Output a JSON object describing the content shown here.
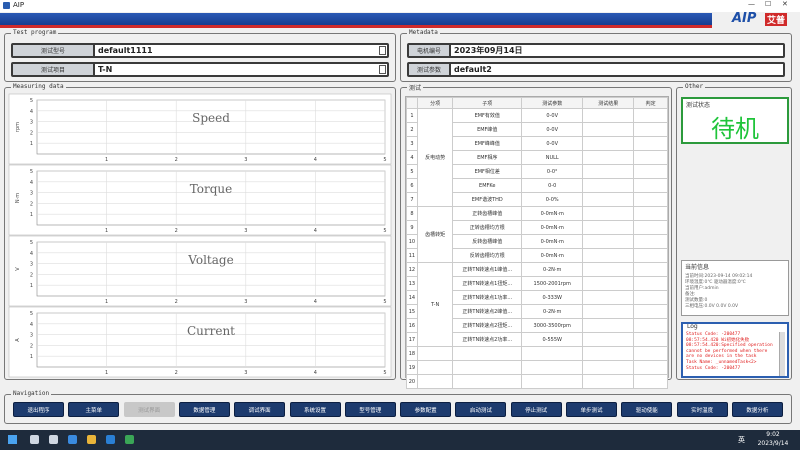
{
  "window": {
    "title": "AIP",
    "logo": "AIP",
    "logo_cn": "艾普"
  },
  "test_program": {
    "title": "Test program",
    "fields": [
      {
        "label": "测试型号",
        "value": "default1111"
      },
      {
        "label": "测试项目",
        "value": "T-N"
      }
    ]
  },
  "metadata": {
    "title": "Metadata",
    "fields": [
      {
        "label": "电机编号",
        "value": "2023年09月14日"
      },
      {
        "label": "测试参数",
        "value": "default2"
      }
    ]
  },
  "measuring": {
    "title": "Measuring data",
    "xlim": [
      0,
      5
    ],
    "xticks": [
      1,
      2,
      3,
      4,
      5
    ],
    "plots": [
      {
        "name": "Speed",
        "ylabel": "rpm",
        "ylim": [
          0,
          5
        ],
        "yticks": [
          1,
          2,
          3,
          4,
          5
        ]
      },
      {
        "name": "Torque",
        "ylabel": "N·m",
        "ylim": [
          0,
          5
        ],
        "yticks": [
          1,
          2,
          3,
          4,
          5
        ]
      },
      {
        "name": "Voltage",
        "ylabel": "V",
        "ylim": [
          0,
          5
        ],
        "yticks": [
          1,
          2,
          3,
          4,
          5
        ]
      },
      {
        "name": "Current",
        "ylabel": "A",
        "ylim": [
          0,
          5
        ],
        "yticks": [
          1,
          2,
          3,
          4,
          5
        ]
      }
    ]
  },
  "test": {
    "title": "测试",
    "headers": [
      "分项",
      "子项",
      "测试参数",
      "测试结果",
      "判定"
    ],
    "groups": [
      {
        "name": "反电动势",
        "rows": [
          {
            "no": 1,
            "item": "EMF有效值",
            "param": "0-0V"
          },
          {
            "no": 2,
            "item": "EMF峰值",
            "param": "0-0V"
          },
          {
            "no": 3,
            "item": "EMF峰峰值",
            "param": "0-0V"
          },
          {
            "no": 4,
            "item": "EMF相序",
            "param": "NULL"
          },
          {
            "no": 5,
            "item": "EMF相位差",
            "param": "0-0°"
          },
          {
            "no": 6,
            "item": "EMFKe",
            "param": "0-0"
          },
          {
            "no": 7,
            "item": "EMF谐波THD",
            "param": "0-0%"
          }
        ]
      },
      {
        "name": "齿槽转矩",
        "rows": [
          {
            "no": 8,
            "item": "正转齿槽峰值",
            "param": "0-0mN·m"
          },
          {
            "no": 9,
            "item": "正转齿槽均方根",
            "param": "0-0mN·m"
          },
          {
            "no": 10,
            "item": "反转齿槽峰值",
            "param": "0-0mN·m"
          },
          {
            "no": 11,
            "item": "反转齿槽均方根",
            "param": "0-0mN·m"
          }
        ]
      },
      {
        "name": "T-N",
        "rows": [
          {
            "no": 12,
            "item": "正转TN转速点1峰值...",
            "param": "0-2N·m"
          },
          {
            "no": 13,
            "item": "正转TN转速点1扭矩...",
            "param": "1500-2001rpm"
          },
          {
            "no": 14,
            "item": "正转TN转速点1功率...",
            "param": "0-333W"
          },
          {
            "no": 15,
            "item": "正转TN转速点2峰值...",
            "param": "0-2N·m"
          },
          {
            "no": 16,
            "item": "正转TN转速点2扭矩...",
            "param": "3000-3500rpm"
          },
          {
            "no": 17,
            "item": "正转TN转速点2功率...",
            "param": "0-555W"
          }
        ]
      }
    ],
    "empty_rows": [
      18,
      19,
      20
    ]
  },
  "other": {
    "title": "Other",
    "status_title": "测试状态",
    "status": "待机",
    "info_title": "当前信息",
    "info": [
      "当前时间:2023-09-14 09:02:14",
      "环境温度:0℃ 驱动器温度:0℃",
      "当前用户:admin",
      "备注:",
      "测试数量:0",
      "三相电压:0.0V 0.0V 0.0V"
    ],
    "log_title": "Log",
    "log": [
      "Status Code: -200477",
      "08:57:54.420 Wi初始化失败",
      "08:57:54.420:Specified operation cannot be performed when there are no devices in the task",
      "Task Name: _unnamedTask<2>",
      "Status Code: -200477"
    ]
  },
  "navigation": {
    "title": "Navigation",
    "buttons": [
      {
        "label": "退出程序"
      },
      {
        "label": "主菜单"
      },
      {
        "label": "测试界面",
        "disabled": true
      },
      {
        "label": "数据管理"
      },
      {
        "label": "调试界面"
      },
      {
        "label": "系统设置"
      },
      {
        "label": "型号管理"
      },
      {
        "label": "参数配置"
      },
      {
        "label": "启动测试"
      },
      {
        "label": "停止测试"
      },
      {
        "label": "单步测试"
      },
      {
        "label": "驱动使能"
      },
      {
        "label": "实时温度"
      },
      {
        "label": "数据分析"
      }
    ]
  },
  "taskbar": {
    "lang": "英",
    "time": "9:02",
    "date": "2023/9/14"
  }
}
